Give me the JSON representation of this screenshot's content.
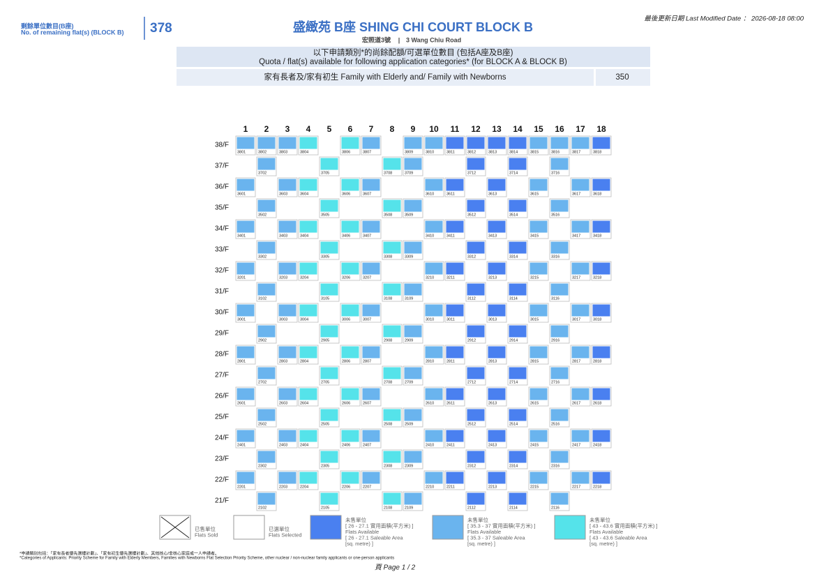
{
  "header": {
    "remaining_label_zh": "剩餘單位數目(B座)",
    "remaining_label_en": "No. of remaining flat(s) (BLOCK B)",
    "remaining_count": "378",
    "title": "盛緻苑 B座 SHING CHI COURT BLOCK B",
    "address_zh": "宏照道3號",
    "address_en": "3 Wang Chiu Road",
    "modified": "最後更新日期  Last Modified Date ：  2026-08-18 08:00"
  },
  "quota": {
    "heading_zh": "以下申請類別*的尚餘配額/可選單位數目 (包括A座及B座)",
    "heading_en": "Quota / flat(s) available for following application categories* (for BLOCK A & BLOCK B)",
    "category": "家有長者及/家有初生 Family with Elderly and/ Family with Newborns",
    "count": "350"
  },
  "grid": {
    "columns": [
      1,
      2,
      3,
      4,
      5,
      6,
      7,
      8,
      9,
      10,
      11,
      12,
      13,
      14,
      15,
      16,
      17,
      18
    ],
    "floors": [
      {
        "floor": "38/F",
        "cells": [
          {
            "unit": "3801",
            "color": "#6ab4ee"
          },
          {
            "unit": "3802",
            "color": "#6ab4ee"
          },
          {
            "unit": "3803",
            "color": "#6ab4ee"
          },
          {
            "unit": "3804",
            "color": "#55e3ea"
          },
          null,
          {
            "unit": "3806",
            "color": "#55e3ea"
          },
          {
            "unit": "3807",
            "color": "#6ab4ee"
          },
          null,
          {
            "unit": "3809",
            "color": "#6ab4ee"
          },
          {
            "unit": "3810",
            "color": "#6ab4ee"
          },
          {
            "unit": "3811",
            "color": "#4a80f0"
          },
          {
            "unit": "3812",
            "color": "#4a80f0"
          },
          {
            "unit": "3813",
            "color": "#4a80f0"
          },
          {
            "unit": "3814",
            "color": "#4a80f0"
          },
          {
            "unit": "3815",
            "color": "#6ab4ee"
          },
          {
            "unit": "3816",
            "color": "#6ab4ee"
          },
          {
            "unit": "3817",
            "color": "#6ab4ee"
          },
          {
            "unit": "3818",
            "color": "#4a80f0"
          }
        ]
      },
      {
        "floor": "37/F",
        "cells": [
          null,
          {
            "unit": "3702",
            "color": "#6ab4ee"
          },
          null,
          null,
          {
            "unit": "3705",
            "color": "#55e3ea"
          },
          null,
          null,
          {
            "unit": "3708",
            "color": "#55e3ea"
          },
          {
            "unit": "3709",
            "color": "#6ab4ee"
          },
          null,
          null,
          {
            "unit": "3712",
            "color": "#4a80f0"
          },
          null,
          {
            "unit": "3714",
            "color": "#4a80f0"
          },
          null,
          {
            "unit": "3716",
            "color": "#6ab4ee"
          },
          null,
          null
        ]
      },
      {
        "floor": "36/F",
        "cells": [
          {
            "unit": "3601",
            "color": "#6ab4ee"
          },
          null,
          {
            "unit": "3603",
            "color": "#6ab4ee"
          },
          {
            "unit": "3604",
            "color": "#55e3ea"
          },
          null,
          {
            "unit": "3606",
            "color": "#55e3ea"
          },
          {
            "unit": "3607",
            "color": "#6ab4ee"
          },
          null,
          null,
          {
            "unit": "3610",
            "color": "#6ab4ee"
          },
          {
            "unit": "3611",
            "color": "#4a80f0"
          },
          null,
          {
            "unit": "3613",
            "color": "#4a80f0"
          },
          null,
          {
            "unit": "3615",
            "color": "#6ab4ee"
          },
          null,
          {
            "unit": "3617",
            "color": "#6ab4ee"
          },
          {
            "unit": "3618",
            "color": "#4a80f0"
          }
        ]
      },
      {
        "floor": "35/F",
        "cells": [
          null,
          {
            "unit": "3502",
            "color": "#6ab4ee"
          },
          null,
          null,
          {
            "unit": "3505",
            "color": "#55e3ea"
          },
          null,
          null,
          {
            "unit": "3508",
            "color": "#55e3ea"
          },
          {
            "unit": "3509",
            "color": "#6ab4ee"
          },
          null,
          null,
          {
            "unit": "3512",
            "color": "#4a80f0"
          },
          null,
          {
            "unit": "3514",
            "color": "#4a80f0"
          },
          null,
          {
            "unit": "3516",
            "color": "#6ab4ee"
          },
          null,
          null
        ]
      },
      {
        "floor": "34/F",
        "cells": [
          {
            "unit": "3401",
            "color": "#6ab4ee"
          },
          null,
          {
            "unit": "3403",
            "color": "#6ab4ee"
          },
          {
            "unit": "3404",
            "color": "#55e3ea"
          },
          null,
          {
            "unit": "3406",
            "color": "#55e3ea"
          },
          {
            "unit": "3407",
            "color": "#6ab4ee"
          },
          null,
          null,
          {
            "unit": "3410",
            "color": "#6ab4ee"
          },
          {
            "unit": "3411",
            "color": "#4a80f0"
          },
          null,
          {
            "unit": "3413",
            "color": "#4a80f0"
          },
          null,
          {
            "unit": "3415",
            "color": "#6ab4ee"
          },
          null,
          {
            "unit": "3417",
            "color": "#6ab4ee"
          },
          {
            "unit": "3418",
            "color": "#4a80f0"
          }
        ]
      },
      {
        "floor": "33/F",
        "cells": [
          null,
          {
            "unit": "3302",
            "color": "#6ab4ee"
          },
          null,
          null,
          {
            "unit": "3305",
            "color": "#55e3ea"
          },
          null,
          null,
          {
            "unit": "3308",
            "color": "#55e3ea"
          },
          {
            "unit": "3309",
            "color": "#6ab4ee"
          },
          null,
          null,
          {
            "unit": "3312",
            "color": "#4a80f0"
          },
          null,
          {
            "unit": "3314",
            "color": "#4a80f0"
          },
          null,
          {
            "unit": "3316",
            "color": "#6ab4ee"
          },
          null,
          null
        ]
      },
      {
        "floor": "32/F",
        "cells": [
          {
            "unit": "3201",
            "color": "#6ab4ee"
          },
          null,
          {
            "unit": "3203",
            "color": "#6ab4ee"
          },
          {
            "unit": "3204",
            "color": "#55e3ea"
          },
          null,
          {
            "unit": "3206",
            "color": "#55e3ea"
          },
          {
            "unit": "3207",
            "color": "#6ab4ee"
          },
          null,
          null,
          {
            "unit": "3210",
            "color": "#6ab4ee"
          },
          {
            "unit": "3211",
            "color": "#4a80f0"
          },
          null,
          {
            "unit": "3213",
            "color": "#4a80f0"
          },
          null,
          {
            "unit": "3215",
            "color": "#6ab4ee"
          },
          null,
          {
            "unit": "3217",
            "color": "#6ab4ee"
          },
          {
            "unit": "3218",
            "color": "#4a80f0"
          }
        ]
      },
      {
        "floor": "31/F",
        "cells": [
          null,
          {
            "unit": "3102",
            "color": "#6ab4ee"
          },
          null,
          null,
          {
            "unit": "3105",
            "color": "#55e3ea"
          },
          null,
          null,
          {
            "unit": "3108",
            "color": "#55e3ea"
          },
          {
            "unit": "3109",
            "color": "#6ab4ee"
          },
          null,
          null,
          {
            "unit": "3112",
            "color": "#4a80f0"
          },
          null,
          {
            "unit": "3114",
            "color": "#4a80f0"
          },
          null,
          {
            "unit": "3116",
            "color": "#6ab4ee"
          },
          null,
          null
        ]
      },
      {
        "floor": "30/F",
        "cells": [
          {
            "unit": "3001",
            "color": "#6ab4ee"
          },
          null,
          {
            "unit": "3003",
            "color": "#6ab4ee"
          },
          {
            "unit": "3004",
            "color": "#55e3ea"
          },
          null,
          {
            "unit": "3006",
            "color": "#55e3ea"
          },
          {
            "unit": "3007",
            "color": "#6ab4ee"
          },
          null,
          null,
          {
            "unit": "3010",
            "color": "#6ab4ee"
          },
          {
            "unit": "3011",
            "color": "#4a80f0"
          },
          null,
          {
            "unit": "3013",
            "color": "#4a80f0"
          },
          null,
          {
            "unit": "3015",
            "color": "#6ab4ee"
          },
          null,
          {
            "unit": "3017",
            "color": "#6ab4ee"
          },
          {
            "unit": "3018",
            "color": "#4a80f0"
          }
        ]
      },
      {
        "floor": "29/F",
        "cells": [
          null,
          {
            "unit": "2902",
            "color": "#6ab4ee"
          },
          null,
          null,
          {
            "unit": "2905",
            "color": "#55e3ea"
          },
          null,
          null,
          {
            "unit": "2908",
            "color": "#55e3ea"
          },
          {
            "unit": "2909",
            "color": "#6ab4ee"
          },
          null,
          null,
          {
            "unit": "2912",
            "color": "#4a80f0"
          },
          null,
          {
            "unit": "2914",
            "color": "#4a80f0"
          },
          null,
          {
            "unit": "2916",
            "color": "#6ab4ee"
          },
          null,
          null
        ]
      },
      {
        "floor": "28/F",
        "cells": [
          {
            "unit": "2801",
            "color": "#6ab4ee"
          },
          null,
          {
            "unit": "2803",
            "color": "#6ab4ee"
          },
          {
            "unit": "2804",
            "color": "#55e3ea"
          },
          null,
          {
            "unit": "2806",
            "color": "#55e3ea"
          },
          {
            "unit": "2807",
            "color": "#6ab4ee"
          },
          null,
          null,
          {
            "unit": "2810",
            "color": "#6ab4ee"
          },
          {
            "unit": "2811",
            "color": "#4a80f0"
          },
          null,
          {
            "unit": "2813",
            "color": "#4a80f0"
          },
          null,
          {
            "unit": "2815",
            "color": "#6ab4ee"
          },
          null,
          {
            "unit": "2817",
            "color": "#6ab4ee"
          },
          {
            "unit": "2818",
            "color": "#4a80f0"
          }
        ]
      },
      {
        "floor": "27/F",
        "cells": [
          null,
          {
            "unit": "2702",
            "color": "#6ab4ee"
          },
          null,
          null,
          {
            "unit": "2705",
            "color": "#55e3ea"
          },
          null,
          null,
          {
            "unit": "2708",
            "color": "#55e3ea"
          },
          {
            "unit": "2709",
            "color": "#6ab4ee"
          },
          null,
          null,
          {
            "unit": "2712",
            "color": "#4a80f0"
          },
          null,
          {
            "unit": "2714",
            "color": "#4a80f0"
          },
          null,
          {
            "unit": "2716",
            "color": "#6ab4ee"
          },
          null,
          null
        ]
      },
      {
        "floor": "26/F",
        "cells": [
          {
            "unit": "2601",
            "color": "#6ab4ee"
          },
          null,
          {
            "unit": "2603",
            "color": "#6ab4ee"
          },
          {
            "unit": "2604",
            "color": "#55e3ea"
          },
          null,
          {
            "unit": "2606",
            "color": "#55e3ea"
          },
          {
            "unit": "2607",
            "color": "#6ab4ee"
          },
          null,
          null,
          {
            "unit": "2610",
            "color": "#6ab4ee"
          },
          {
            "unit": "2611",
            "color": "#4a80f0"
          },
          null,
          {
            "unit": "2613",
            "color": "#4a80f0"
          },
          null,
          {
            "unit": "2615",
            "color": "#6ab4ee"
          },
          null,
          {
            "unit": "2617",
            "color": "#6ab4ee"
          },
          {
            "unit": "2618",
            "color": "#4a80f0"
          }
        ]
      },
      {
        "floor": "25/F",
        "cells": [
          null,
          {
            "unit": "2502",
            "color": "#6ab4ee"
          },
          null,
          null,
          {
            "unit": "2505",
            "color": "#55e3ea"
          },
          null,
          null,
          {
            "unit": "2508",
            "color": "#55e3ea"
          },
          {
            "unit": "2509",
            "color": "#6ab4ee"
          },
          null,
          null,
          {
            "unit": "2512",
            "color": "#4a80f0"
          },
          null,
          {
            "unit": "2514",
            "color": "#4a80f0"
          },
          null,
          {
            "unit": "2516",
            "color": "#6ab4ee"
          },
          null,
          null
        ]
      },
      {
        "floor": "24/F",
        "cells": [
          {
            "unit": "2401",
            "color": "#6ab4ee"
          },
          null,
          {
            "unit": "2403",
            "color": "#6ab4ee"
          },
          {
            "unit": "2404",
            "color": "#55e3ea"
          },
          null,
          {
            "unit": "2406",
            "color": "#55e3ea"
          },
          {
            "unit": "2407",
            "color": "#6ab4ee"
          },
          null,
          null,
          {
            "unit": "2410",
            "color": "#6ab4ee"
          },
          {
            "unit": "2411",
            "color": "#4a80f0"
          },
          null,
          {
            "unit": "2413",
            "color": "#4a80f0"
          },
          null,
          {
            "unit": "2415",
            "color": "#6ab4ee"
          },
          null,
          {
            "unit": "2417",
            "color": "#6ab4ee"
          },
          {
            "unit": "2418",
            "color": "#4a80f0"
          }
        ]
      },
      {
        "floor": "23/F",
        "cells": [
          null,
          {
            "unit": "2302",
            "color": "#6ab4ee"
          },
          null,
          null,
          {
            "unit": "2305",
            "color": "#55e3ea"
          },
          null,
          null,
          {
            "unit": "2308",
            "color": "#55e3ea"
          },
          {
            "unit": "2309",
            "color": "#6ab4ee"
          },
          null,
          null,
          {
            "unit": "2312",
            "color": "#4a80f0"
          },
          null,
          {
            "unit": "2314",
            "color": "#4a80f0"
          },
          null,
          {
            "unit": "2316",
            "color": "#6ab4ee"
          },
          null,
          null
        ]
      },
      {
        "floor": "22/F",
        "cells": [
          {
            "unit": "2201",
            "color": "#6ab4ee"
          },
          null,
          {
            "unit": "2203",
            "color": "#6ab4ee"
          },
          {
            "unit": "2204",
            "color": "#55e3ea"
          },
          null,
          {
            "unit": "2206",
            "color": "#55e3ea"
          },
          {
            "unit": "2207",
            "color": "#6ab4ee"
          },
          null,
          null,
          {
            "unit": "2210",
            "color": "#6ab4ee"
          },
          {
            "unit": "2211",
            "color": "#4a80f0"
          },
          null,
          {
            "unit": "2213",
            "color": "#4a80f0"
          },
          null,
          {
            "unit": "2215",
            "color": "#6ab4ee"
          },
          null,
          {
            "unit": "2217",
            "color": "#6ab4ee"
          },
          {
            "unit": "2218",
            "color": "#4a80f0"
          }
        ]
      },
      {
        "floor": "21/F",
        "cells": [
          null,
          {
            "unit": "2102",
            "color": "#6ab4ee"
          },
          null,
          null,
          {
            "unit": "2105",
            "color": "#55e3ea"
          },
          null,
          null,
          {
            "unit": "2108",
            "color": "#55e3ea"
          },
          {
            "unit": "2109",
            "color": "#6ab4ee"
          },
          null,
          null,
          {
            "unit": "2112",
            "color": "#4a80f0"
          },
          null,
          {
            "unit": "2114",
            "color": "#4a80f0"
          },
          null,
          {
            "unit": "2116",
            "color": "#6ab4ee"
          },
          null,
          null
        ]
      }
    ]
  },
  "legend": [
    {
      "lines": [
        "已售單位",
        "Flats Sold"
      ],
      "color": "#ffffff",
      "sold": true
    },
    {
      "lines": [
        "已選單位",
        "Flats Selected"
      ],
      "color": "#ffffff"
    },
    {
      "lines": [
        "未售單位",
        "[ 26 - 27.1 實用面積(平方米) ]",
        "Flats Available",
        "[ 26 - 27.1 Saleable Area",
        "[sq. metre) ]"
      ],
      "color": "#4a80f0"
    },
    {
      "lines": [
        "未售單位",
        "[ 35.3 - 37 實用面積(平方米) ]",
        "Flats Available",
        "[ 35.3 - 37 Saleable Area",
        "[sq. metre) ]"
      ],
      "color": "#6ab4ee"
    },
    {
      "lines": [
        "未售單位",
        "[ 43 - 43.6 實用面積(平方米) ]",
        "Flats Available",
        "[ 43 - 43.6 Saleable Area",
        "[sq. metre) ]"
      ],
      "color": "#55e3ea"
    }
  ],
  "footer": {
    "note_zh": "*申請類別包括：「家有長者優先選樓計劃」、「家有初生優先選樓計劃」、其他核心/非核心家庭或一人申請者。",
    "note_en": "*Categories of Applicants: Priority Scheme for Family with Elderly Members, Families with Newborns Flat Selection Priority Scheme, other nuclear / non-nuclear family applicants or one-person applicants",
    "page": "頁  Page  1 / 2"
  }
}
